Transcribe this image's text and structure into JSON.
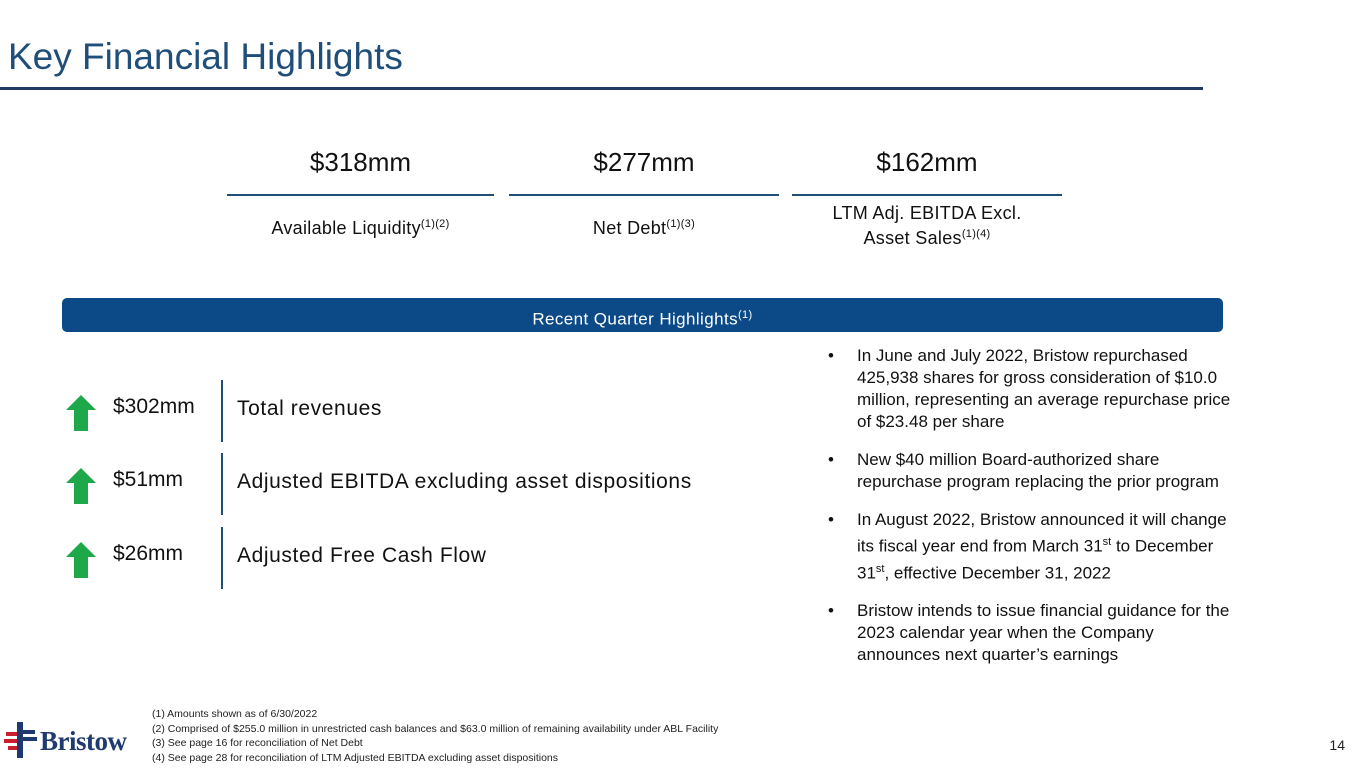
{
  "title": "Key Financial Highlights",
  "metrics": [
    {
      "value": "$318mm",
      "label": "Available Liquidity",
      "sup": "(1)(2)"
    },
    {
      "value": "$277mm",
      "label": "Net Debt",
      "sup": "(1)(3)"
    },
    {
      "value": "$162mm",
      "label_line1": "LTM Adj. EBITDA Excl.",
      "label_line2": "Asset Sales",
      "sup": "(1)(4)"
    }
  ],
  "banner": {
    "text": "Recent Quarter Highlights",
    "sup": "(1)"
  },
  "highlights": [
    {
      "value": "$302mm",
      "label": "Total revenues",
      "trend": "up"
    },
    {
      "value": "$51mm",
      "label": "Adjusted EBITDA excluding asset dispositions",
      "trend": "up"
    },
    {
      "value": "$26mm",
      "label": "Adjusted Free Cash Flow",
      "trend": "up"
    }
  ],
  "bullets": {
    "b1": "In June and July 2022, Bristow repurchased 425,938 shares for gross consideration of $10.0 million, representing an average repurchase price of $23.48 per share",
    "b2": "New $40 million Board-authorized share repurchase program replacing the prior program",
    "b3": {
      "part1": "In August 2022, Bristow announced it will change its fiscal year end from March 31",
      "sup1": "st",
      "part2": " to December 31",
      "sup2": "st",
      "part3": ", effective December 31, 2022"
    },
    "b4": "Bristow intends to issue financial guidance for the 2023 calendar year when the Company announces next quarter’s earnings"
  },
  "footnotes": [
    "(1) Amounts shown as of 6/30/2022",
    "(2) Comprised of $255.0 million in unrestricted cash balances and $63.0 million of remaining availability under ABL Facility",
    "(3) See page 16 for reconciliation of Net Debt",
    "(4) See page 28 for reconciliation of LTM Adjusted EBITDA excluding asset dispositions"
  ],
  "logo": {
    "text": "Bristow"
  },
  "page_number": "14",
  "colors": {
    "title": "#1f4e79",
    "banner": "#0b4a86",
    "arrow": "#1fa84a",
    "logo_blue": "#1f3a6e",
    "logo_red": "#c8202f"
  }
}
